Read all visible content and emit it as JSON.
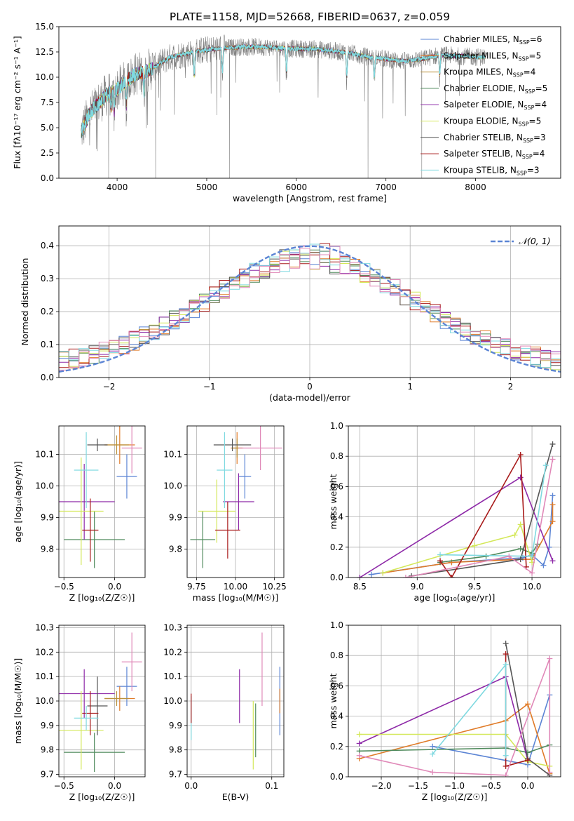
{
  "figure_title": "PLATE=1158, MJD=52668, FIBERID=0637, z=0.059",
  "colors": {
    "Chabrier MILES": "#5b84d4",
    "Salpeter MILES": "#e07b28",
    "Kroupa MILES": "#b8913a",
    "Chabrier ELODIE": "#4f8a5c",
    "Salpeter ELODIE": "#8e2aa8",
    "Kroupa ELODIE": "#d4e85a",
    "Chabrier STELIB": "#555555",
    "Salpeter STELIB": "#a81a1a",
    "Kroupa STELIB": "#7fd9e0",
    "Chabrier MILES pink": "#e088b8",
    "data": "#808080",
    "normal": "#5b84d4"
  },
  "chart_data": [
    {
      "id": "spectrum",
      "type": "line",
      "title": "PLATE=1158, MJD=52668, FIBERID=0637, z=0.059",
      "xlabel": "wavelength [Angstrom, rest frame]",
      "ylabel": "Flux [fλ10⁻¹⁷ erg cm⁻² s⁻¹ A⁻¹]",
      "xlim": [
        3350,
        8950
      ],
      "ylim": [
        0,
        15
      ],
      "xticks": [
        "4000",
        "5000",
        "6000",
        "7000",
        "8000"
      ],
      "yticks": [
        "0.0",
        "2.5",
        "5.0",
        "7.5",
        "10.0",
        "12.5",
        "15.0"
      ],
      "legend": [
        "Chabrier MILES, N_SSP=6",
        "Salpeter MILES, N_SSP=5",
        "Kroupa MILES, N_SSP=4",
        "Chabrier ELODIE, N_SSP=5",
        "Salpeter ELODIE, N_SSP=4",
        "Kroupa ELODIE, N_SSP=5",
        "Chabrier STELIB, N_SSP=3",
        "Salpeter STELIB, N_SSP=4",
        "Kroupa STELIB, N_SSP=3"
      ],
      "legend_main": [
        "Chabrier MILES, N",
        "Salpeter MILES, N",
        "Kroupa MILES, N",
        "Chabrier ELODIE, N",
        "Salpeter ELODIE, N",
        "Kroupa ELODIE, N",
        "Chabrier STELIB, N",
        "Salpeter STELIB, N",
        "Kroupa STELIB, N"
      ],
      "legend_sub": "SSP",
      "legend_tail": [
        "=6",
        "=5",
        "=4",
        "=5",
        "=4",
        "=5",
        "=3",
        "=4",
        "=3"
      ],
      "continuum": [
        [
          3600,
          4.6
        ],
        [
          3700,
          6.5
        ],
        [
          3800,
          7.5
        ],
        [
          3900,
          8.4
        ],
        [
          4000,
          8.8
        ],
        [
          4100,
          9.6
        ],
        [
          4200,
          10.3
        ],
        [
          4300,
          10.5
        ],
        [
          4400,
          10.9
        ],
        [
          4500,
          11.5
        ],
        [
          4600,
          12.0
        ],
        [
          4700,
          12.2
        ],
        [
          4800,
          12.4
        ],
        [
          4900,
          12.6
        ],
        [
          5000,
          12.7
        ],
        [
          5200,
          12.9
        ],
        [
          5400,
          13.0
        ],
        [
          5600,
          13.0
        ],
        [
          5800,
          12.9
        ],
        [
          6000,
          12.8
        ],
        [
          6200,
          12.8
        ],
        [
          6400,
          12.6
        ],
        [
          6600,
          12.4
        ],
        [
          6800,
          12.0
        ],
        [
          7000,
          11.8
        ],
        [
          7200,
          11.6
        ],
        [
          7400,
          11.8
        ],
        [
          7600,
          12.2
        ],
        [
          7800,
          12.1
        ],
        [
          8000,
          12.0
        ],
        [
          8100,
          12.0
        ]
      ],
      "absorption_dips": [
        [
          3933,
          2.0
        ],
        [
          3968,
          2.5
        ],
        [
          4102,
          3.0
        ],
        [
          4300,
          2.5
        ],
        [
          4861,
          3.0
        ],
        [
          5175,
          3.0
        ],
        [
          5890,
          3.0
        ],
        [
          6563,
          3.0
        ],
        [
          6870,
          2.5
        ],
        [
          7600,
          2.5
        ]
      ],
      "sky_spikes": [
        [
          3905,
          0.0
        ],
        [
          4430,
          0.0
        ],
        [
          5255,
          0.0
        ],
        [
          6800,
          0.0
        ],
        [
          7400,
          0.0
        ]
      ]
    },
    {
      "id": "residual-histogram",
      "type": "bar",
      "xlabel": "(data-model)/error",
      "ylabel": "Normed distribution",
      "xlim": [
        -2.5,
        2.5
      ],
      "ylim": [
        0,
        0.46
      ],
      "xticks": [
        "−2",
        "−1",
        "0",
        "1",
        "2"
      ],
      "yticks": [
        "0.0",
        "0.1",
        "0.2",
        "0.3",
        "0.4"
      ],
      "legend": [
        "𝒩(0, 1)"
      ],
      "normal_mean": 0,
      "normal_sigma": 1,
      "bin_width": 0.1,
      "bin_start": -2.5,
      "envelope_shape": "gaussian-with-wider-wings"
    },
    {
      "id": "age-vs-Z",
      "type": "scatter",
      "xlabel": "Z [log₁₀(Z/Z☉)]",
      "ylabel": "age [log₁₀(age/yr)]",
      "xlim": [
        -0.55,
        0.3
      ],
      "ylim": [
        9.71,
        10.19
      ],
      "xticks": [
        "−0.5",
        "0.0"
      ],
      "yticks": [
        "9.8",
        "9.9",
        "10.0",
        "10.1"
      ],
      "points": [
        {
          "series": "Chabrier MILES",
          "x": 0.12,
          "y": 10.03,
          "xerr": 0.1,
          "yerr": 0.07
        },
        {
          "series": "Salpeter MILES",
          "x": 0.05,
          "y": 10.13,
          "xerr": 0.15,
          "yerr": 0.06
        },
        {
          "series": "Kroupa MILES",
          "x": 0.02,
          "y": 10.13,
          "xerr": 0.12,
          "yerr": 0.03
        },
        {
          "series": "Chabrier ELODIE",
          "x": -0.2,
          "y": 9.83,
          "xerr": 0.3,
          "yerr": 0.09
        },
        {
          "series": "Salpeter ELODIE",
          "x": -0.3,
          "y": 9.95,
          "xerr": 0.3,
          "yerr": 0.12
        },
        {
          "series": "Kroupa ELODIE",
          "x": -0.33,
          "y": 9.92,
          "xerr": 0.22,
          "yerr": 0.17
        },
        {
          "series": "Chabrier STELIB",
          "x": -0.17,
          "y": 10.13,
          "xerr": 0.1,
          "yerr": 0.02
        },
        {
          "series": "Salpeter STELIB",
          "x": -0.24,
          "y": 9.86,
          "xerr": 0.08,
          "yerr": 0.1
        },
        {
          "series": "Kroupa STELIB",
          "x": -0.28,
          "y": 10.05,
          "xerr": 0.12,
          "yerr": 0.12
        },
        {
          "series": "Chabrier MILES pink",
          "x": 0.17,
          "y": 10.12,
          "xerr": 0.1,
          "yerr": 0.08
        }
      ]
    },
    {
      "id": "age-vs-mass",
      "type": "scatter",
      "xlabel": "mass [log₁₀(M/M☉)]",
      "ylabel": "",
      "xlim": [
        9.69,
        10.31
      ],
      "ylim": [
        9.71,
        10.19
      ],
      "xticks": [
        "9.75",
        "10.00",
        "10.25"
      ],
      "yticks": [
        "9.8",
        "9.9",
        "10.0",
        "10.1"
      ],
      "points": [
        {
          "series": "Chabrier MILES",
          "x": 10.06,
          "y": 10.03,
          "xerr": 0.04,
          "yerr": 0.07
        },
        {
          "series": "Salpeter MILES",
          "x": 10.01,
          "y": 10.12,
          "xerr": 0.04,
          "yerr": 0.05
        },
        {
          "series": "Kroupa MILES",
          "x": 10.01,
          "y": 10.12,
          "xerr": 0.03,
          "yerr": 0.03
        },
        {
          "series": "Chabrier ELODIE",
          "x": 9.79,
          "y": 9.83,
          "xerr": 0.08,
          "yerr": 0.09
        },
        {
          "series": "Salpeter ELODIE",
          "x": 10.02,
          "y": 9.95,
          "xerr": 0.1,
          "yerr": 0.09
        },
        {
          "series": "Kroupa ELODIE",
          "x": 9.88,
          "y": 9.92,
          "xerr": 0.12,
          "yerr": 0.1
        },
        {
          "series": "Chabrier STELIB",
          "x": 9.98,
          "y": 10.13,
          "xerr": 0.12,
          "yerr": 0.02
        },
        {
          "series": "Salpeter STELIB",
          "x": 9.95,
          "y": 9.86,
          "xerr": 0.08,
          "yerr": 0.09
        },
        {
          "series": "Kroupa STELIB",
          "x": 9.93,
          "y": 10.05,
          "xerr": 0.05,
          "yerr": 0.12
        },
        {
          "series": "Chabrier MILES pink",
          "x": 10.16,
          "y": 10.12,
          "xerr": 0.14,
          "yerr": 0.07
        }
      ]
    },
    {
      "id": "massweight-vs-age",
      "type": "line",
      "xlabel": "age [log₁₀(age/yr)]",
      "ylabel": "mass weight",
      "xlim": [
        8.4,
        10.25
      ],
      "ylim": [
        0,
        1
      ],
      "xticks": [
        "8.5",
        "9.0",
        "9.5",
        "10.0"
      ],
      "yticks": [
        "0.0",
        "0.2",
        "0.4",
        "0.6",
        "0.8",
        "1.0"
      ],
      "series": [
        {
          "name": "Chabrier MILES",
          "x": [
            8.6,
            9.3,
            9.92,
            10.0,
            10.1,
            10.15,
            10.18
          ],
          "y": [
            0.02,
            0.1,
            0.13,
            0.15,
            0.08,
            0.2,
            0.54
          ]
        },
        {
          "name": "Salpeter MILES",
          "x": [
            8.7,
            9.3,
            9.9,
            10.0,
            10.18,
            10.18
          ],
          "y": [
            0.03,
            0.1,
            0.12,
            0.12,
            0.37,
            0.48
          ]
        },
        {
          "name": "Chabrier ELODIE",
          "x": [
            9.2,
            9.6,
            9.9,
            10.0,
            10.05
          ],
          "y": [
            0.1,
            0.14,
            0.19,
            0.16,
            0.22
          ]
        },
        {
          "name": "Salpeter ELODIE",
          "x": [
            8.5,
            9.9,
            10.18
          ],
          "y": [
            0.0,
            0.66,
            0.11
          ]
        },
        {
          "name": "Kroupa ELODIE",
          "x": [
            8.7,
            9.5,
            9.85,
            9.9,
            10.0
          ],
          "y": [
            0.03,
            0.21,
            0.28,
            0.35,
            0.1
          ]
        },
        {
          "name": "Chabrier STELIB",
          "x": [
            8.95,
            9.9,
            10.18
          ],
          "y": [
            0.01,
            0.12,
            0.88
          ]
        },
        {
          "name": "Salpeter STELIB",
          "x": [
            9.2,
            9.3,
            9.9,
            9.95
          ],
          "y": [
            0.11,
            0.0,
            0.81,
            0.07
          ]
        },
        {
          "name": "Kroupa STELIB",
          "x": [
            9.2,
            10.0,
            10.12
          ],
          "y": [
            0.15,
            0.14,
            0.74
          ]
        },
        {
          "name": "Chabrier MILES pink",
          "x": [
            8.9,
            9.8,
            10.0,
            10.18
          ],
          "y": [
            0.0,
            0.14,
            0.03,
            0.78
          ]
        }
      ]
    },
    {
      "id": "mass-vs-Z",
      "type": "scatter",
      "xlabel": "Z [log₁₀(Z/Z☉)]",
      "ylabel": "mass [log₁₀(M/M☉)]",
      "xlim": [
        -0.55,
        0.3
      ],
      "ylim": [
        9.69,
        10.31
      ],
      "xticks": [
        "−0.5",
        "0.0"
      ],
      "yticks": [
        "9.7",
        "9.8",
        "9.9",
        "10.0",
        "10.1",
        "10.2",
        "10.3"
      ],
      "points": [
        {
          "series": "Chabrier MILES",
          "x": 0.12,
          "y": 10.06,
          "xerr": 0.1,
          "yerr": 0.08
        },
        {
          "series": "Salpeter MILES",
          "x": 0.05,
          "y": 10.01,
          "xerr": 0.15,
          "yerr": 0.05
        },
        {
          "series": "Kroupa MILES",
          "x": 0.02,
          "y": 10.01,
          "xerr": 0.12,
          "yerr": 0.03
        },
        {
          "series": "Chabrier ELODIE",
          "x": -0.2,
          "y": 9.79,
          "xerr": 0.3,
          "yerr": 0.08
        },
        {
          "series": "Salpeter ELODIE",
          "x": -0.3,
          "y": 10.03,
          "xerr": 0.3,
          "yerr": 0.1
        },
        {
          "series": "Kroupa ELODIE",
          "x": -0.33,
          "y": 9.88,
          "xerr": 0.22,
          "yerr": 0.16
        },
        {
          "series": "Chabrier STELIB",
          "x": -0.17,
          "y": 9.98,
          "xerr": 0.1,
          "yerr": 0.12
        },
        {
          "series": "Salpeter STELIB",
          "x": -0.24,
          "y": 9.95,
          "xerr": 0.08,
          "yerr": 0.09
        },
        {
          "series": "Kroupa STELIB",
          "x": -0.28,
          "y": 9.93,
          "xerr": 0.12,
          "yerr": 0.05
        },
        {
          "series": "Chabrier MILES pink",
          "x": 0.17,
          "y": 10.16,
          "xerr": 0.1,
          "yerr": 0.12
        }
      ]
    },
    {
      "id": "mass-vs-EBV",
      "type": "scatter",
      "xlabel": "E(B-V)",
      "ylabel": "",
      "xlim": [
        -0.005,
        0.115
      ],
      "ylim": [
        9.69,
        10.31
      ],
      "xticks": [
        "0.0",
        "0.1"
      ],
      "yticks": [
        "9.7",
        "9.8",
        "9.9",
        "10.0",
        "10.1",
        "10.2",
        "10.3"
      ],
      "points": [
        {
          "series": "Chabrier MILES",
          "x": 0.11,
          "y": 10.0,
          "xerr": 0,
          "yerr": 0.14
        },
        {
          "series": "Salpeter MILES",
          "x": 0.11,
          "y": 10.0,
          "xerr": 0,
          "yerr": 0.05
        },
        {
          "series": "Chabrier ELODIE",
          "x": 0.08,
          "y": 9.88,
          "xerr": 0,
          "yerr": 0.11
        },
        {
          "series": "Salpeter ELODIE",
          "x": 0.06,
          "y": 10.02,
          "xerr": 0,
          "yerr": 0.11
        },
        {
          "series": "Kroupa ELODIE",
          "x": 0.077,
          "y": 9.86,
          "xerr": 0,
          "yerr": 0.14
        },
        {
          "series": "Kroupa STELIB",
          "x": 0.0,
          "y": 9.93,
          "xerr": 0,
          "yerr": 0.09
        },
        {
          "series": "Salpeter STELIB",
          "x": 0.0,
          "y": 9.97,
          "xerr": 0,
          "yerr": 0.06
        },
        {
          "series": "Chabrier MILES pink",
          "x": 0.088,
          "y": 10.13,
          "xerr": 0,
          "yerr": 0.15
        }
      ]
    },
    {
      "id": "massweight-vs-Z",
      "type": "line",
      "xlabel": "Z [log₁₀(Z/Z☉)]",
      "ylabel": "mass weight",
      "xlim": [
        -2.45,
        0.45
      ],
      "ylim": [
        0,
        1
      ],
      "xticks": [
        "−2.0",
        "−1.5",
        "−1.0",
        "−0.5",
        "0.0"
      ],
      "yticks": [
        "0.0",
        "0.2",
        "0.4",
        "0.6",
        "0.8",
        "1.0"
      ],
      "series": [
        {
          "name": "Chabrier MILES",
          "x": [
            -1.3,
            0.0,
            0.3
          ],
          "y": [
            0.2,
            0.08,
            0.54
          ]
        },
        {
          "name": "Salpeter MILES",
          "x": [
            -2.3,
            -0.3,
            0.0,
            0.3
          ],
          "y": [
            0.12,
            0.37,
            0.48,
            0.02
          ]
        },
        {
          "name": "Chabrier ELODIE",
          "x": [
            -2.3,
            -0.3,
            0.0,
            0.3
          ],
          "y": [
            0.17,
            0.19,
            0.16,
            0.21
          ]
        },
        {
          "name": "Salpeter ELODIE",
          "x": [
            -2.3,
            -0.3,
            0.0
          ],
          "y": [
            0.22,
            0.66,
            0.11
          ]
        },
        {
          "name": "Kroupa ELODIE",
          "x": [
            -2.3,
            -0.3,
            0.0,
            0.3
          ],
          "y": [
            0.28,
            0.28,
            0.1,
            0.07
          ]
        },
        {
          "name": "Chabrier STELIB",
          "x": [
            -0.3,
            0.0,
            0.3
          ],
          "y": [
            0.88,
            0.12,
            0.01
          ]
        },
        {
          "name": "Salpeter STELIB",
          "x": [
            -0.3,
            -0.3,
            0.0
          ],
          "y": [
            0.81,
            0.07,
            0.11
          ]
        },
        {
          "name": "Kroupa STELIB",
          "x": [
            -1.3,
            -0.3,
            -0.3
          ],
          "y": [
            0.15,
            0.74,
            0.14
          ]
        },
        {
          "name": "Chabrier MILES pink",
          "x": [
            -2.3,
            -1.3,
            -0.3,
            0.3,
            0.3
          ],
          "y": [
            0.14,
            0.03,
            0.01,
            0.78,
            0.03
          ]
        }
      ]
    }
  ]
}
